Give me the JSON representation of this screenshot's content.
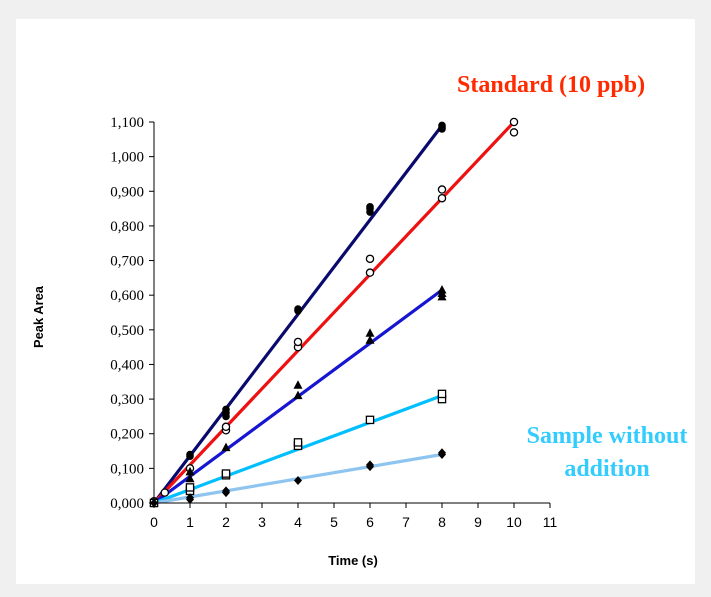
{
  "chart_data": {
    "type": "scatter",
    "xlabel": "Time (s)",
    "ylabel": "Peak Area",
    "xlim": [
      0,
      11
    ],
    "ylim": [
      0,
      1.1
    ],
    "x_ticks": [
      "0",
      "1",
      "2",
      "3",
      "4",
      "5",
      "6",
      "7",
      "8",
      "9",
      "10",
      "11"
    ],
    "y_ticks": [
      "0,000",
      "0,100",
      "0,200",
      "0,300",
      "0,400",
      "0,500",
      "0,600",
      "0,700",
      "0,800",
      "0,900",
      "1,000",
      "1,100"
    ],
    "grid": false,
    "annotations": [
      {
        "id": "standard",
        "lines": [
          "Standard (10 ppb)"
        ],
        "color": "#ff2a00"
      },
      {
        "id": "sample",
        "lines": [
          "Sample without",
          "addition"
        ],
        "color": "#33ccff"
      }
    ],
    "series": [
      {
        "id": "navy",
        "color": "#0a0a6e",
        "marker": "filled-circle",
        "fit": [
          [
            0,
            0
          ],
          [
            8,
            1.09
          ]
        ],
        "points": [
          [
            0,
            0
          ],
          [
            0,
            0.005
          ],
          [
            0.3,
            0.03
          ],
          [
            1,
            0.135
          ],
          [
            1,
            0.14
          ],
          [
            2,
            0.25
          ],
          [
            2,
            0.26
          ],
          [
            2,
            0.27
          ],
          [
            4,
            0.555
          ],
          [
            4,
            0.56
          ],
          [
            6,
            0.84
          ],
          [
            6,
            0.85
          ],
          [
            6,
            0.855
          ],
          [
            8,
            1.08
          ],
          [
            8,
            1.085
          ],
          [
            8,
            1.09
          ]
        ]
      },
      {
        "id": "red",
        "color": "#ee1111",
        "marker": "open-circle",
        "fit": [
          [
            0,
            0
          ],
          [
            10,
            1.1
          ]
        ],
        "points": [
          [
            0,
            0.005
          ],
          [
            0.3,
            0.03
          ],
          [
            1,
            0.1
          ],
          [
            2,
            0.21
          ],
          [
            2,
            0.22
          ],
          [
            4,
            0.45
          ],
          [
            4,
            0.465
          ],
          [
            6,
            0.665
          ],
          [
            6,
            0.705
          ],
          [
            8,
            0.88
          ],
          [
            8,
            0.905
          ],
          [
            10,
            1.07
          ],
          [
            10,
            1.1
          ]
        ]
      },
      {
        "id": "blue",
        "color": "#1515d2",
        "marker": "filled-triangle",
        "fit": [
          [
            0,
            0
          ],
          [
            8,
            0.615
          ]
        ],
        "points": [
          [
            0,
            0
          ],
          [
            1,
            0.07
          ],
          [
            1,
            0.09
          ],
          [
            2,
            0.16
          ],
          [
            4,
            0.31
          ],
          [
            4,
            0.34
          ],
          [
            6,
            0.47
          ],
          [
            6,
            0.49
          ],
          [
            8,
            0.595
          ],
          [
            8,
            0.605
          ],
          [
            8,
            0.615
          ]
        ]
      },
      {
        "id": "cyan",
        "color": "#00bfff",
        "marker": "open-square",
        "fit": [
          [
            0,
            0
          ],
          [
            8,
            0.31
          ]
        ],
        "points": [
          [
            0,
            0
          ],
          [
            1,
            0.035
          ],
          [
            1,
            0.045
          ],
          [
            2,
            0.08
          ],
          [
            2,
            0.085
          ],
          [
            4,
            0.165
          ],
          [
            4,
            0.175
          ],
          [
            6,
            0.24
          ],
          [
            8,
            0.3
          ],
          [
            8,
            0.315
          ]
        ]
      },
      {
        "id": "lightblue",
        "color": "#8ec5f0",
        "marker": "filled-diamond",
        "fit": [
          [
            0,
            0
          ],
          [
            8,
            0.14
          ]
        ],
        "points": [
          [
            0,
            0
          ],
          [
            1,
            0.01
          ],
          [
            1,
            0.015
          ],
          [
            2,
            0.03
          ],
          [
            2,
            0.035
          ],
          [
            4,
            0.065
          ],
          [
            6,
            0.105
          ],
          [
            6,
            0.11
          ],
          [
            8,
            0.14
          ],
          [
            8,
            0.145
          ]
        ]
      }
    ]
  }
}
